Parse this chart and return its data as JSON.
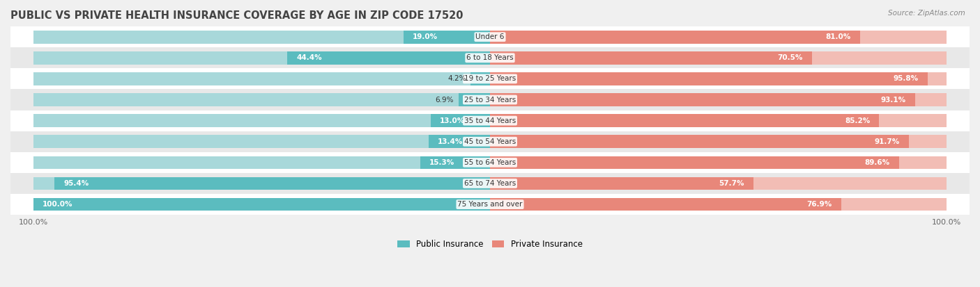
{
  "title": "PUBLIC VS PRIVATE HEALTH INSURANCE COVERAGE BY AGE IN ZIP CODE 17520",
  "source": "Source: ZipAtlas.com",
  "categories": [
    "Under 6",
    "6 to 18 Years",
    "19 to 25 Years",
    "25 to 34 Years",
    "35 to 44 Years",
    "45 to 54 Years",
    "55 to 64 Years",
    "65 to 74 Years",
    "75 Years and over"
  ],
  "public_values": [
    19.0,
    44.4,
    4.2,
    6.9,
    13.0,
    13.4,
    15.3,
    95.4,
    100.0
  ],
  "private_values": [
    81.0,
    70.5,
    95.8,
    93.1,
    85.2,
    91.7,
    89.6,
    57.7,
    76.9
  ],
  "public_color": "#5bbcbf",
  "private_color": "#e8877a",
  "public_color_light": "#a8d8da",
  "private_color_light": "#f2bdb5",
  "bg_color": "#f0f0f0",
  "row_bg_even": "#ffffff",
  "row_bg_odd": "#e8e8e8",
  "title_color": "#444444",
  "label_color": "#333333",
  "figsize": [
    14.06,
    4.13
  ],
  "dpi": 100
}
